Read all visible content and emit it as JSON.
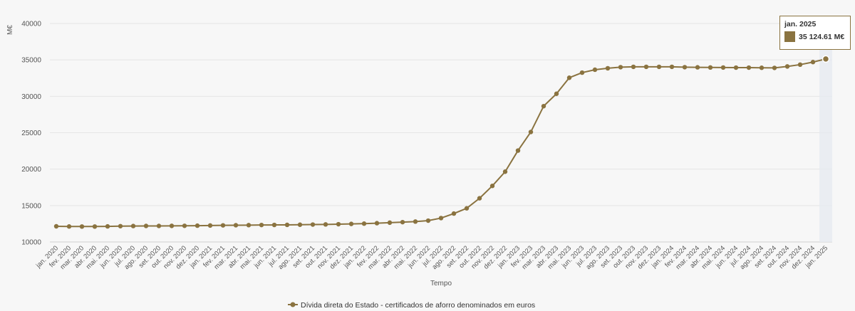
{
  "chart_data": {
    "type": "line",
    "ylabel": "M€",
    "xlabel": "Tempo",
    "ylim": [
      10000,
      40000
    ],
    "yticks": [
      10000,
      15000,
      20000,
      25000,
      30000,
      35000,
      40000
    ],
    "grid": true,
    "legend_position": "bottom",
    "color": "#8a7340",
    "categories": [
      "jan. 2020",
      "fev. 2020",
      "mar. 2020",
      "abr. 2020",
      "mai. 2020",
      "jun. 2020",
      "jul. 2020",
      "ago. 2020",
      "set. 2020",
      "out. 2020",
      "nov. 2020",
      "dez. 2020",
      "jan. 2021",
      "fev. 2021",
      "mar. 2021",
      "abr. 2021",
      "mai. 2021",
      "jun. 2021",
      "jul. 2021",
      "ago. 2021",
      "set. 2021",
      "out. 2021",
      "nov. 2021",
      "dez. 2021",
      "jan. 2022",
      "fev. 2022",
      "mar. 2022",
      "abr. 2022",
      "mai. 2022",
      "jun. 2022",
      "jul. 2022",
      "ago. 2022",
      "set. 2022",
      "out. 2022",
      "nov. 2022",
      "dez. 2022",
      "jan. 2023",
      "fev. 2023",
      "mar. 2023",
      "abr. 2023",
      "mai. 2023",
      "jun. 2023",
      "jul. 2023",
      "ago. 2023",
      "set. 2023",
      "out. 2023",
      "nov. 2023",
      "dez. 2023",
      "jan. 2024",
      "fev. 2024",
      "mar. 2024",
      "abr. 2024",
      "mai. 2024",
      "jun. 2024",
      "jul. 2024",
      "ago. 2024",
      "set. 2024",
      "out. 2024",
      "nov. 2024",
      "dez. 2024",
      "jan. 2025"
    ],
    "series": [
      {
        "name": "Dívida direta do Estado - certificados de aforro denominados em euros",
        "values": [
          12150,
          12130,
          12120,
          12120,
          12140,
          12170,
          12190,
          12200,
          12200,
          12210,
          12220,
          12240,
          12260,
          12280,
          12300,
          12310,
          12330,
          12340,
          12350,
          12370,
          12390,
          12410,
          12440,
          12480,
          12520,
          12580,
          12650,
          12720,
          12800,
          12930,
          13280,
          13900,
          14620,
          16000,
          17700,
          19650,
          22550,
          25100,
          28650,
          30350,
          32550,
          33250,
          33650,
          33850,
          34000,
          34050,
          34050,
          34050,
          34050,
          34000,
          33980,
          33960,
          33950,
          33940,
          33940,
          33920,
          33900,
          34100,
          34350,
          34700,
          35124.61
        ]
      }
    ],
    "tooltip": {
      "title": "jan. 2025",
      "value": "35 124.61 M€"
    }
  }
}
